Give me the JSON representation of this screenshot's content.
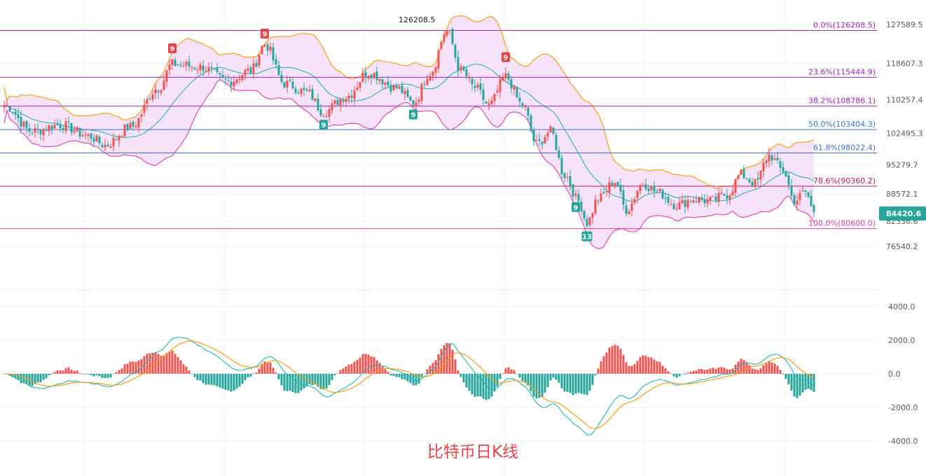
{
  "caption": "比特币日K线",
  "chart_data": [
    {
      "type": "candlestick",
      "panel": "price",
      "y_ticks": [
        127589.5,
        118607.3,
        110257.4,
        102495.3,
        95279.7,
        88572.1,
        82336.6,
        76540.2
      ],
      "ylim": [
        72000,
        130000
      ],
      "current_price": "84420.6",
      "peak_label": "126208.5",
      "fib_levels": [
        {
          "label": "0.0%(126208.5)",
          "value": 126208.5,
          "color": "#9c27b0"
        },
        {
          "label": "23.6%(115444.9)",
          "value": 115444.9,
          "color": "#9c27b0"
        },
        {
          "label": "38.2%(108786.1)",
          "value": 108786.1,
          "color": "#9c27b0"
        },
        {
          "label": "50.0%(103404.3)",
          "value": 103404.3,
          "color": "#3f6fd8"
        },
        {
          "label": "61.8%(98022.4)",
          "value": 98022.4,
          "color": "#3f6fd8"
        },
        {
          "label": "78.6%(90360.2)",
          "value": 90360.2,
          "color": "#c2185b"
        },
        {
          "label": "100.0%(80600.0)",
          "value": 80600.0,
          "color": "#e040a0"
        }
      ],
      "td_markers": [
        {
          "text": "9",
          "kind": "sell",
          "bar": 60
        },
        {
          "text": "9",
          "kind": "sell",
          "bar": 93
        },
        {
          "text": "9",
          "kind": "buy",
          "bar": 114
        },
        {
          "text": "9",
          "kind": "buy",
          "bar": 146
        },
        {
          "text": "9",
          "kind": "sell",
          "bar": 179
        },
        {
          "text": "9",
          "kind": "buy",
          "bar": 204
        },
        {
          "text": "13",
          "kind": "buy",
          "bar": 208
        }
      ],
      "indicators": [
        "Bollinger Bands",
        "MA (middle band)"
      ],
      "colors": {
        "up": "#ef5350",
        "down": "#26a69a",
        "band_fill": "#f3d8f7",
        "upper_band": "#ff9800",
        "lower_band": "#e040a0",
        "mid_band": "#26b5b5",
        "price_tag": "#26a69a"
      }
    },
    {
      "type": "macd",
      "panel": "oscillator",
      "y_ticks": [
        "4000.0",
        "2000.0",
        "0.0",
        "-2000.0",
        "-4000.0"
      ],
      "ylim": [
        -6000,
        4300
      ],
      "colors": {
        "hist_up": "#ef5350",
        "hist_down": "#26a69a",
        "dif": "#26b5b5",
        "dea": "#ff9800"
      }
    }
  ],
  "anchors": [
    {
      "i": 0,
      "v": 109000
    },
    {
      "i": 10,
      "v": 103000
    },
    {
      "i": 20,
      "v": 104500
    },
    {
      "i": 30,
      "v": 102000
    },
    {
      "i": 36,
      "v": 99800
    },
    {
      "i": 45,
      "v": 104000
    },
    {
      "i": 55,
      "v": 113000
    },
    {
      "i": 60,
      "v": 118500
    },
    {
      "i": 70,
      "v": 117800
    },
    {
      "i": 80,
      "v": 114500
    },
    {
      "i": 88,
      "v": 117000
    },
    {
      "i": 93,
      "v": 123000
    },
    {
      "i": 100,
      "v": 114000
    },
    {
      "i": 108,
      "v": 112000
    },
    {
      "i": 114,
      "v": 107500
    },
    {
      "i": 122,
      "v": 111000
    },
    {
      "i": 130,
      "v": 116500
    },
    {
      "i": 140,
      "v": 113000
    },
    {
      "i": 146,
      "v": 109500
    },
    {
      "i": 152,
      "v": 116500
    },
    {
      "i": 158,
      "v": 126208
    },
    {
      "i": 163,
      "v": 117000
    },
    {
      "i": 168,
      "v": 113000
    },
    {
      "i": 173,
      "v": 109000
    },
    {
      "i": 179,
      "v": 115500
    },
    {
      "i": 185,
      "v": 109000
    },
    {
      "i": 190,
      "v": 100000
    },
    {
      "i": 195,
      "v": 103000
    },
    {
      "i": 200,
      "v": 93000
    },
    {
      "i": 205,
      "v": 87000
    },
    {
      "i": 208,
      "v": 82000
    },
    {
      "i": 212,
      "v": 87500
    },
    {
      "i": 218,
      "v": 91500
    },
    {
      "i": 222,
      "v": 85000
    },
    {
      "i": 228,
      "v": 91000
    },
    {
      "i": 233,
      "v": 89000
    },
    {
      "i": 240,
      "v": 86000
    },
    {
      "i": 246,
      "v": 87500
    },
    {
      "i": 252,
      "v": 87000
    },
    {
      "i": 258,
      "v": 88500
    },
    {
      "i": 263,
      "v": 93000
    },
    {
      "i": 268,
      "v": 91000
    },
    {
      "i": 273,
      "v": 97500
    },
    {
      "i": 278,
      "v": 94000
    },
    {
      "i": 282,
      "v": 87000
    },
    {
      "i": 286,
      "v": 89000
    },
    {
      "i": 289,
      "v": 84420
    }
  ]
}
